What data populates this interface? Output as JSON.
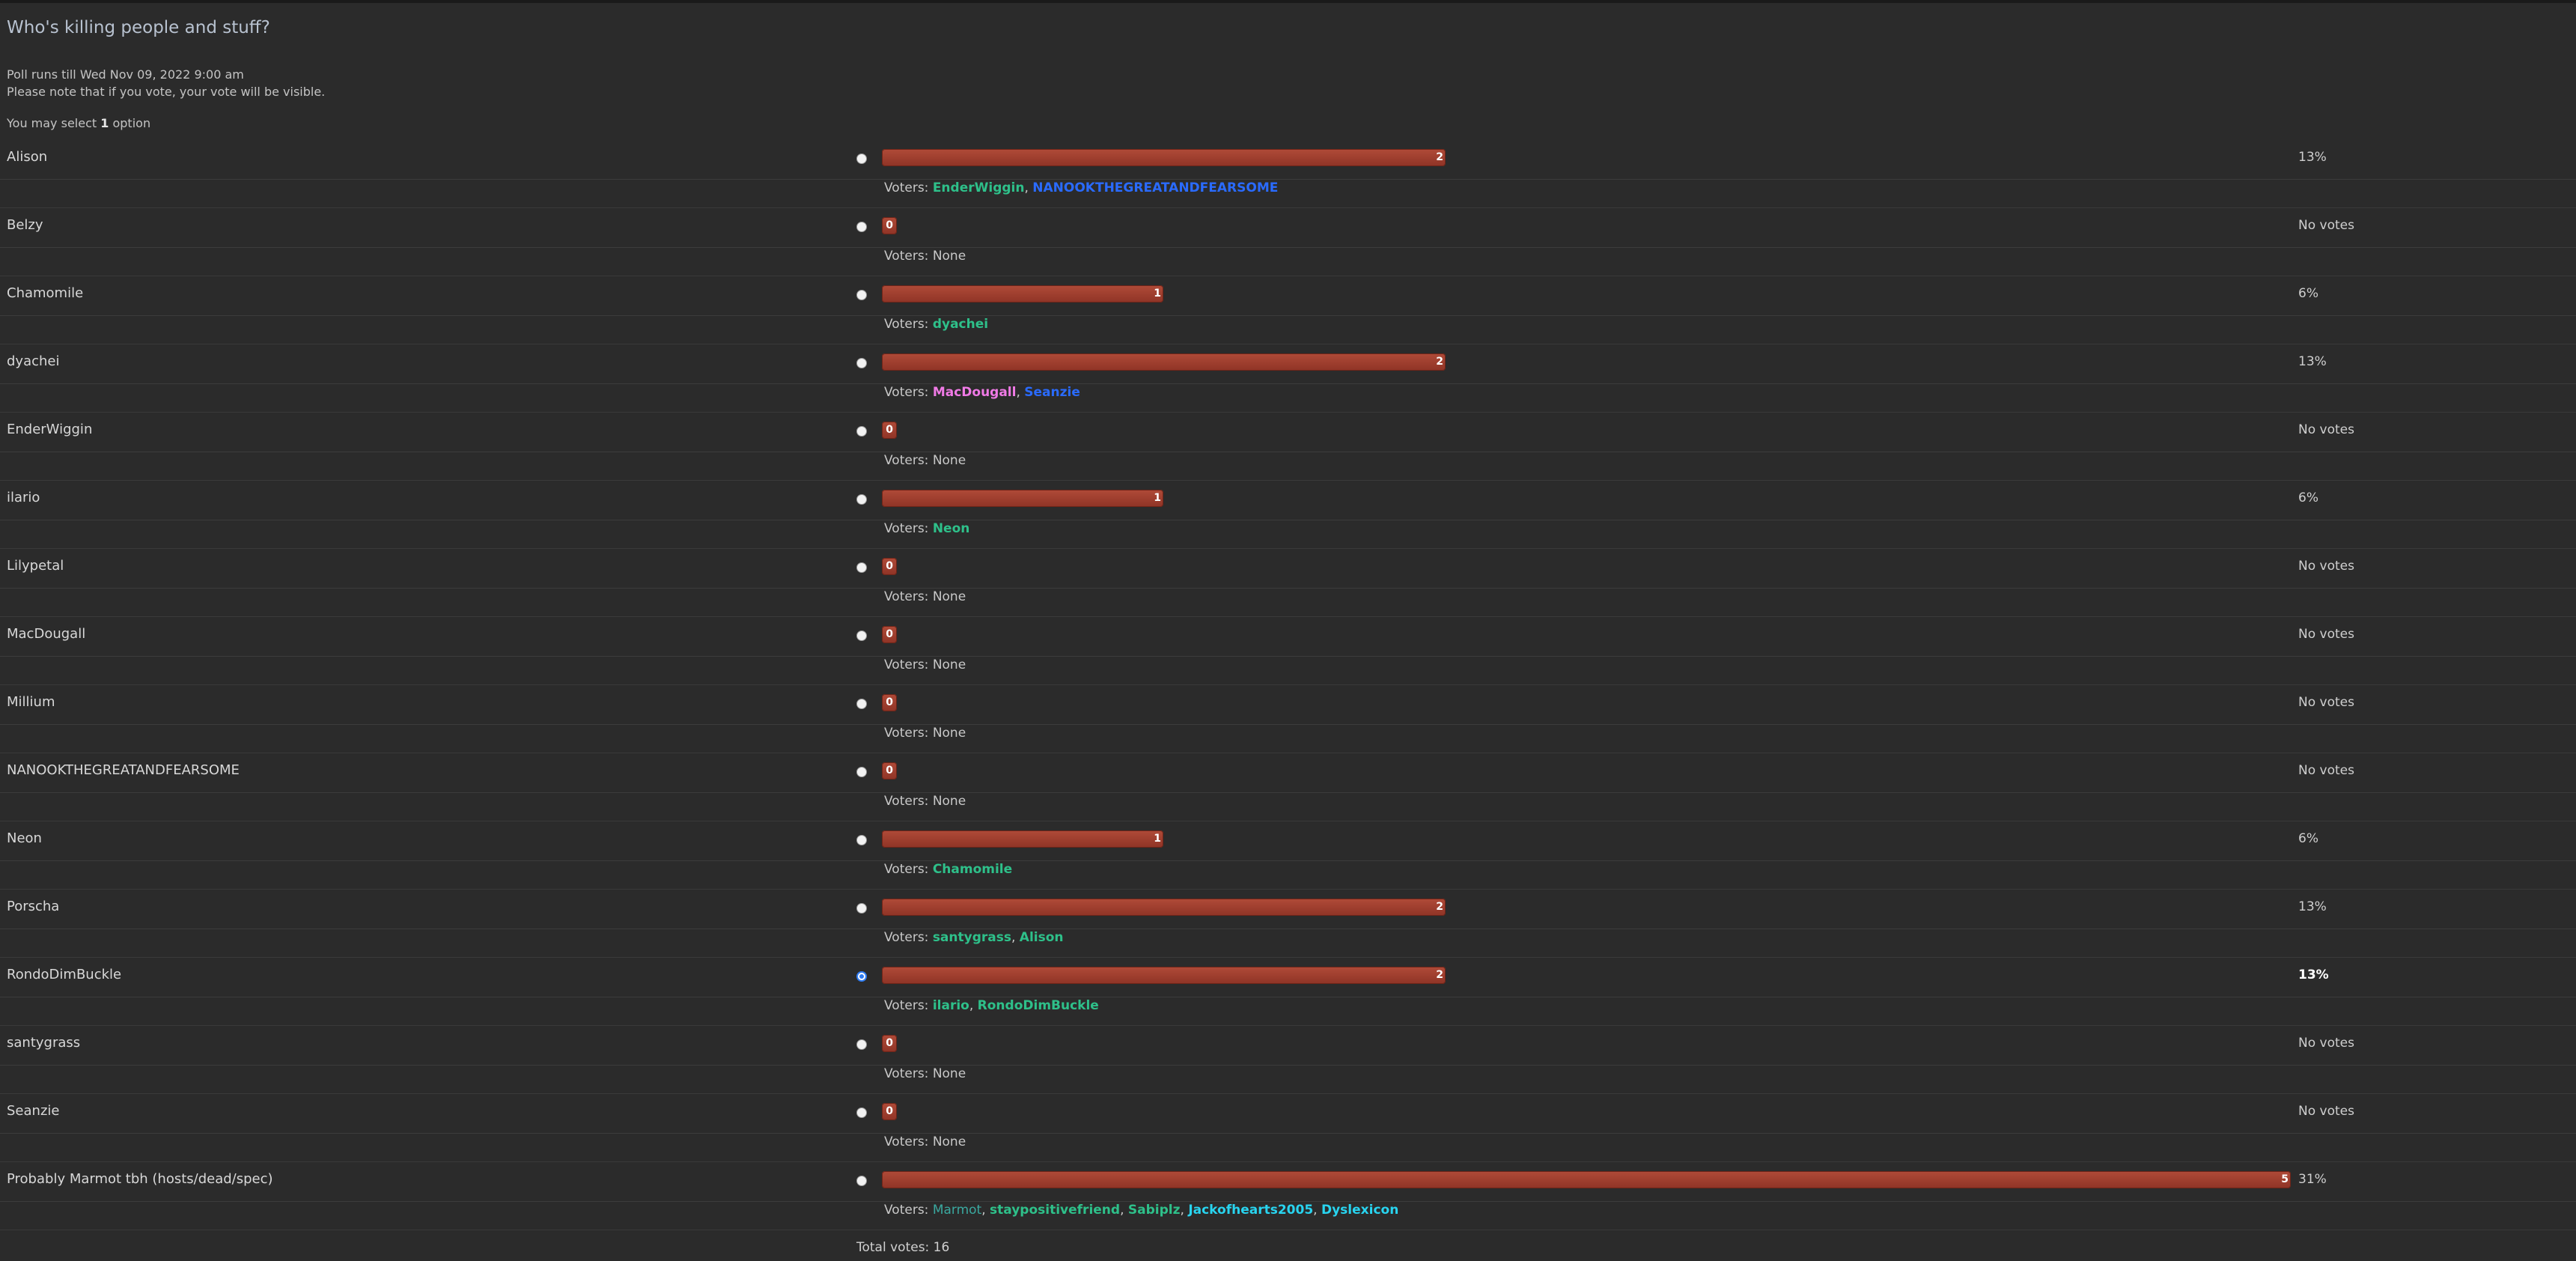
{
  "poll": {
    "title": "Who's killing people and stuff?",
    "runs_till": "Poll runs till Wed Nov 09, 2022 9:00 am",
    "visibility_note": "Please note that if you vote, your vote will be visible.",
    "select_prefix": "You may select",
    "select_count": "1",
    "select_suffix": "option",
    "voters_label": "Voters:",
    "total_votes": "Total votes: 16",
    "max_votes": 5,
    "colors": {
      "bar": "#a3402f",
      "green_user": "#2ec08a",
      "blue_user": "#2a6bff",
      "pink_user": "#f07ae6",
      "cyan_user": "#28d4f0",
      "teal_user": "#3aa9a0"
    },
    "options": [
      {
        "name": "Alison",
        "votes": 2,
        "percent": "13%",
        "voters": [
          {
            "n": "EnderWiggin",
            "c": "green"
          },
          {
            "n": "NANOOKTHEGREATANDFEARSOME",
            "c": "blue"
          }
        ]
      },
      {
        "name": "Belzy",
        "votes": 0,
        "percent": "No votes",
        "voters_none": "None"
      },
      {
        "name": "Chamomile",
        "votes": 1,
        "percent": "6%",
        "voters": [
          {
            "n": "dyachei",
            "c": "green"
          }
        ]
      },
      {
        "name": "dyachei",
        "votes": 2,
        "percent": "13%",
        "voters": [
          {
            "n": "MacDougall",
            "c": "pink"
          },
          {
            "n": "Seanzie",
            "c": "blue"
          }
        ]
      },
      {
        "name": "EnderWiggin",
        "votes": 0,
        "percent": "No votes",
        "voters_none": "None"
      },
      {
        "name": "ilario",
        "votes": 1,
        "percent": "6%",
        "voters": [
          {
            "n": "Neon",
            "c": "green"
          }
        ]
      },
      {
        "name": "Lilypetal",
        "votes": 0,
        "percent": "No votes",
        "voters_none": "None"
      },
      {
        "name": "MacDougall",
        "votes": 0,
        "percent": "No votes",
        "voters_none": "None"
      },
      {
        "name": "Millium",
        "votes": 0,
        "percent": "No votes",
        "voters_none": "None"
      },
      {
        "name": "NANOOKTHEGREATANDFEARSOME",
        "votes": 0,
        "percent": "No votes",
        "voters_none": "None"
      },
      {
        "name": "Neon",
        "votes": 1,
        "percent": "6%",
        "voters": [
          {
            "n": "Chamomile",
            "c": "green"
          }
        ]
      },
      {
        "name": "Porscha",
        "votes": 2,
        "percent": "13%",
        "voters": [
          {
            "n": "santygrass",
            "c": "green"
          },
          {
            "n": "Alison",
            "c": "green"
          }
        ]
      },
      {
        "name": "RondoDimBuckle",
        "votes": 2,
        "percent": "13%",
        "selected": true,
        "voters": [
          {
            "n": "ilario",
            "c": "green"
          },
          {
            "n": "RondoDimBuckle",
            "c": "green"
          }
        ]
      },
      {
        "name": "santygrass",
        "votes": 0,
        "percent": "No votes",
        "voters_none": "None"
      },
      {
        "name": "Seanzie",
        "votes": 0,
        "percent": "No votes",
        "voters_none": "None"
      },
      {
        "name": "Probably Marmot tbh (hosts/dead/spec)",
        "votes": 5,
        "percent": "31%",
        "voters": [
          {
            "n": "Marmot",
            "c": "teal"
          },
          {
            "n": "staypositivefriend",
            "c": "green"
          },
          {
            "n": "Sabiplz",
            "c": "green"
          },
          {
            "n": "Jackofhearts2005",
            "c": "cyan"
          },
          {
            "n": "Dyslexicon",
            "c": "cyan"
          }
        ]
      }
    ]
  }
}
